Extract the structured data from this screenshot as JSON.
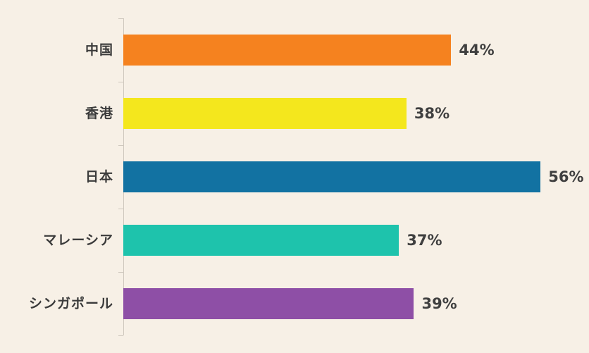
{
  "chart_data": {
    "type": "bar",
    "orientation": "horizontal",
    "title": "",
    "xlabel": "",
    "ylabel": "",
    "categories": [
      "中国",
      "香港",
      "日本",
      "マレーシア",
      "シンガポール"
    ],
    "values": [
      44,
      38,
      56,
      37,
      39
    ],
    "value_labels": [
      "44%",
      "38%",
      "56%",
      "37%",
      "39%"
    ],
    "bar_colors": [
      "#F5821F",
      "#F4E71D",
      "#1272A2",
      "#1EC3AC",
      "#8E4FA6"
    ],
    "xlim": [
      0,
      62.5
    ],
    "grid": false,
    "legend": "none",
    "background_color": "#F7F0E6",
    "axis_color": "#CFC8BE",
    "category_label_color": "#3B3B3B",
    "value_label_color": "#3F3F3F"
  }
}
